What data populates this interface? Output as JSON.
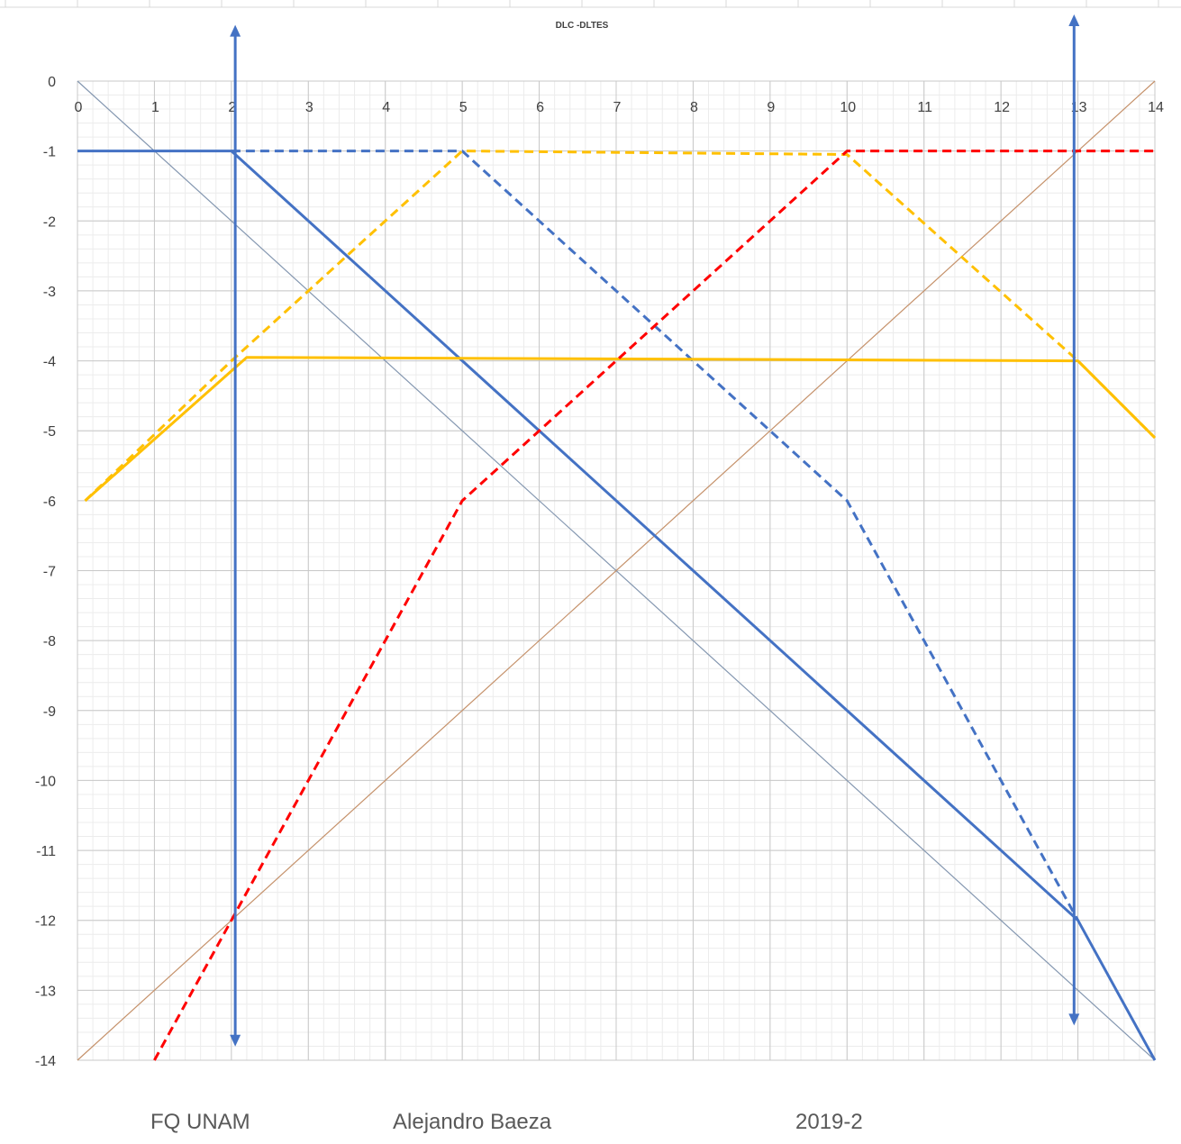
{
  "footer": {
    "institution": "FQ UNAM",
    "author": "Alejandro Baeza",
    "period": "2019-2"
  },
  "chart_data": {
    "type": "line",
    "title": "DLC -DLTES",
    "xlabel": "",
    "ylabel": "",
    "xlim": [
      0,
      14
    ],
    "ylim": [
      -14,
      0
    ],
    "x_ticks": [
      0,
      1,
      2,
      3,
      4,
      5,
      6,
      7,
      8,
      9,
      10,
      11,
      12,
      13,
      14
    ],
    "y_ticks": [
      0,
      -1,
      -2,
      -3,
      -4,
      -5,
      -6,
      -7,
      -8,
      -9,
      -10,
      -11,
      -12,
      -13,
      -14
    ],
    "grid": true,
    "minor_grid": true,
    "legend": "none",
    "series": [
      {
        "color": "#8497b0",
        "style": "solid",
        "width": 1.2,
        "x": [
          0,
          14
        ],
        "y": [
          0,
          -14
        ]
      },
      {
        "color": "#c5916a",
        "style": "solid",
        "width": 1.2,
        "x": [
          0,
          14
        ],
        "y": [
          -14,
          0
        ]
      },
      {
        "color": "#4472c4",
        "style": "solid",
        "width": 3,
        "x": [
          0,
          2,
          13,
          14
        ],
        "y": [
          -1,
          -1,
          -12,
          -14
        ]
      },
      {
        "color": "#4472c4",
        "style": "dashed",
        "width": 3,
        "x": [
          2,
          5,
          10,
          13
        ],
        "y": [
          -1,
          -1,
          -6,
          -12
        ]
      },
      {
        "color": "#ffc000",
        "style": "solid",
        "width": 3,
        "x": [
          0.1,
          2.2,
          13,
          14
        ],
        "y": [
          -6,
          -3.95,
          -4,
          -5.1
        ]
      },
      {
        "color": "#ffc000",
        "style": "dashed",
        "width": 3,
        "x": [
          0.1,
          2,
          5,
          10,
          13,
          14
        ],
        "y": [
          -6,
          -4,
          -1,
          -1.05,
          -4,
          -5.1
        ]
      },
      {
        "color": "#ff0000",
        "style": "dashed",
        "width": 3,
        "x": [
          1,
          5,
          10,
          14
        ],
        "y": [
          -14,
          -6,
          -1,
          -1
        ]
      }
    ],
    "arrows": [
      {
        "color": "#4472c4",
        "x": 2.05,
        "y_from": -13.7,
        "y_to": 0.7
      },
      {
        "color": "#4472c4",
        "x": 12.95,
        "y_from": -13.4,
        "y_to": 0.85
      }
    ]
  }
}
